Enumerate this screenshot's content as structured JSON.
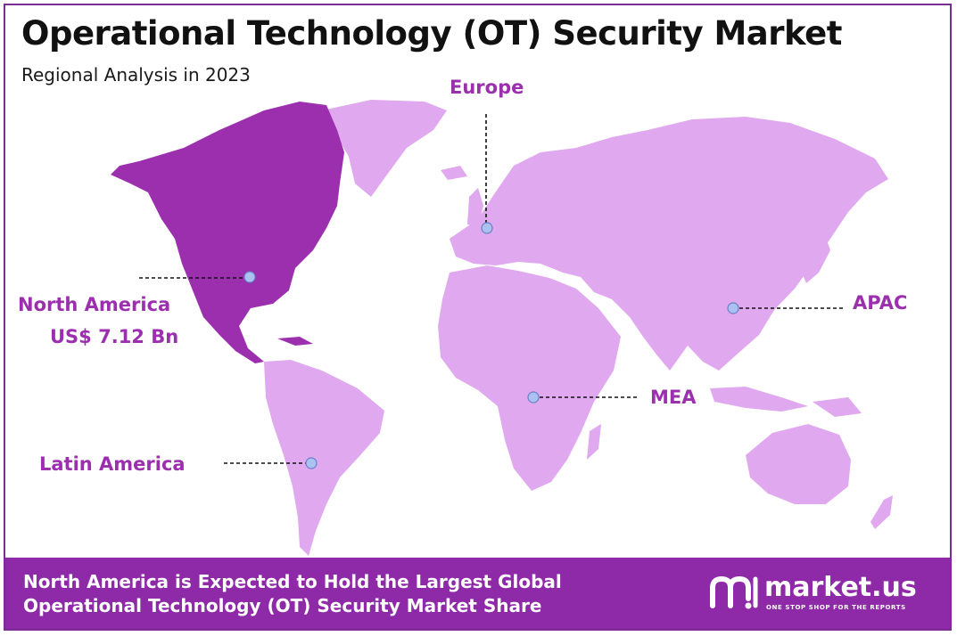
{
  "header": {
    "title": "Operational Technology (OT) Security Market",
    "subtitle": "Regional Analysis in 2023"
  },
  "map": {
    "highlight_color": "#9b2fae",
    "land_color": "#e0a8ee",
    "highlighted_region": "North America",
    "regions": [
      {
        "name": "North America",
        "value": "US$ 7.12 Bn"
      },
      {
        "name": "Europe"
      },
      {
        "name": "APAC"
      },
      {
        "name": "MEA"
      },
      {
        "name": "Latin America"
      }
    ]
  },
  "footer": {
    "line1": "North America is Expected to Hold the Largest Global",
    "line2": "Operational Technology (OT) Security Market Share",
    "brand": "market.us",
    "tagline": "ONE STOP SHOP FOR THE REPORTS",
    "background": "#8e2aa8"
  }
}
